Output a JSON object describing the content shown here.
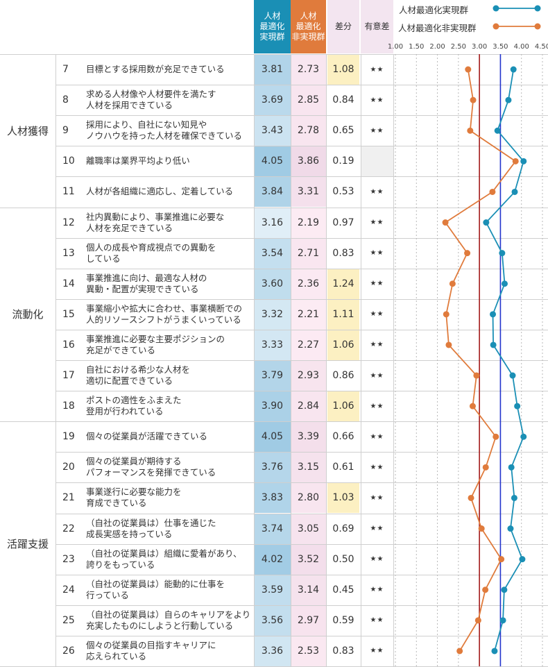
{
  "header": {
    "real": "人材\n最適化\n実現群",
    "non": "人材\n最適化\n非実現群",
    "diff": "差分",
    "sig": "有意差"
  },
  "legend": [
    {
      "label": "人材最適化実現群",
      "color": "#1a8fb5"
    },
    {
      "label": "人材最適化非実現群",
      "color": "#e07b3c"
    }
  ],
  "groups": [
    {
      "name": "人材獲得",
      "first": 0,
      "last": 4
    },
    {
      "name": "流動化",
      "first": 5,
      "last": 11
    },
    {
      "name": "活躍支援",
      "first": 12,
      "last": 19
    }
  ],
  "chart_data": {
    "type": "line",
    "title": "",
    "xlabel": "",
    "ylabel": "",
    "xlim": [
      1.0,
      4.5
    ],
    "ticks": [
      "1.00",
      "1.50",
      "2.00",
      "2.50",
      "3.00",
      "3.50",
      "4.00",
      "4.50"
    ],
    "reference_lines": [
      {
        "value": 3.0,
        "color": "#a31a1a"
      },
      {
        "value": 3.5,
        "color": "#2233cc"
      }
    ],
    "series": [
      {
        "name": "人材最適化実現群",
        "color": "#1a8fb5"
      },
      {
        "name": "人材最適化非実現群",
        "color": "#e07b3c"
      }
    ],
    "rows": [
      {
        "no": "7",
        "label": "目標とする採用数が充足できている",
        "real": "3.81",
        "non": "2.73",
        "diff": "1.08",
        "sig": "★★"
      },
      {
        "no": "8",
        "label": "求める人材像や人材要件を満たす\n人材を採用できている",
        "real": "3.69",
        "non": "2.85",
        "diff": "0.84",
        "sig": "★★"
      },
      {
        "no": "9",
        "label": "採用により、自社にない知見や\nノウハウを持った人材を確保できている",
        "real": "3.43",
        "non": "2.78",
        "diff": "0.65",
        "sig": "★★"
      },
      {
        "no": "10",
        "label": "離職率は業界平均より低い",
        "real": "4.05",
        "non": "3.86",
        "diff": "0.19",
        "sig": ""
      },
      {
        "no": "11",
        "label": "人材が各組織に適応し、定着している",
        "real": "3.84",
        "non": "3.31",
        "diff": "0.53",
        "sig": "★★"
      },
      {
        "no": "12",
        "label": "社内異動により、事業推進に必要な\n人材を充足できている",
        "real": "3.16",
        "non": "2.19",
        "diff": "0.97",
        "sig": "★★"
      },
      {
        "no": "13",
        "label": "個人の成長や育成視点での異動を\nしている",
        "real": "3.54",
        "non": "2.71",
        "diff": "0.83",
        "sig": "★★"
      },
      {
        "no": "14",
        "label": "事業推進に向け、最適な人材の\n異動・配置が実現できている",
        "real": "3.60",
        "non": "2.36",
        "diff": "1.24",
        "sig": "★★"
      },
      {
        "no": "15",
        "label": "事業縮小や拡大に合わせ、事業横断での\n人的リソースシフトがうまくいっている",
        "real": "3.32",
        "non": "2.21",
        "diff": "1.11",
        "sig": "★★"
      },
      {
        "no": "16",
        "label": "事業推進に必要な主要ポジションの\n充足ができている",
        "real": "3.33",
        "non": "2.27",
        "diff": "1.06",
        "sig": "★★"
      },
      {
        "no": "17",
        "label": "自社における希少な人材を\n適切に配置できている",
        "real": "3.79",
        "non": "2.93",
        "diff": "0.86",
        "sig": "★★"
      },
      {
        "no": "18",
        "label": "ポストの適性をふまえた\n登用が行われている",
        "real": "3.90",
        "non": "2.84",
        "diff": "1.06",
        "sig": "★★"
      },
      {
        "no": "19",
        "label": "個々の従業員が活躍できている",
        "real": "4.05",
        "non": "3.39",
        "diff": "0.66",
        "sig": "★★"
      },
      {
        "no": "20",
        "label": "個々の従業員が期待する\nパフォーマンスを発揮できている",
        "real": "3.76",
        "non": "3.15",
        "diff": "0.61",
        "sig": "★★"
      },
      {
        "no": "21",
        "label": "事業遂行に必要な能力を\n育成できている",
        "real": "3.83",
        "non": "2.80",
        "diff": "1.03",
        "sig": "★★"
      },
      {
        "no": "22",
        "label": "（自社の従業員は）仕事を通じた\n成長実感を持っている",
        "real": "3.74",
        "non": "3.05",
        "diff": "0.69",
        "sig": "★★"
      },
      {
        "no": "23",
        "label": "（自社の従業員は）組織に愛着があり、\n誇りをもっている",
        "real": "4.02",
        "non": "3.52",
        "diff": "0.50",
        "sig": "★★"
      },
      {
        "no": "24",
        "label": "（自社の従業員は）能動的に仕事を\n行っている",
        "real": "3.59",
        "non": "3.14",
        "diff": "0.45",
        "sig": "★★"
      },
      {
        "no": "25",
        "label": "（自社の従業員は）自らのキャリアをより\n充実したものにしようと行動している",
        "real": "3.56",
        "non": "2.97",
        "diff": "0.59",
        "sig": "★★"
      },
      {
        "no": "26",
        "label": "個々の従業員の目指すキャリアに\n応えられている",
        "real": "3.36",
        "non": "2.53",
        "diff": "0.83",
        "sig": "★★"
      }
    ]
  }
}
